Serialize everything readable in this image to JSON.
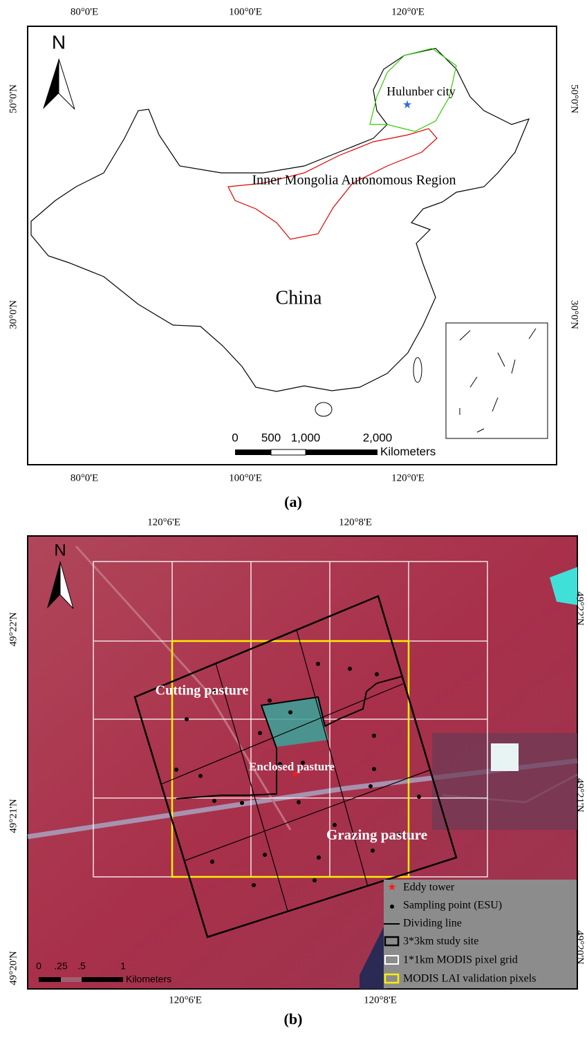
{
  "panel_a": {
    "lon_ticks": [
      "80°0'E",
      "100°0'E",
      "120°0'E"
    ],
    "lat_ticks": [
      "50°0'N",
      "30°0'N"
    ],
    "north": "N",
    "labels": {
      "city": "Hulunber city",
      "region": "Inner Mongolia Autonomous Region",
      "country": "China"
    },
    "scale": {
      "ticks": [
        "0",
        "500",
        "1,000",
        "2,000"
      ],
      "unit": "Kilometers"
    },
    "caption": "(a)"
  },
  "panel_b": {
    "lon_ticks": [
      "120°6'E",
      "120°8'E"
    ],
    "lat_ticks": [
      "49°22'N",
      "49°21'N",
      "49°20'N"
    ],
    "north": "N",
    "labels": {
      "cutting": "Cutting pasture",
      "enclosed": "Enclosed pasture",
      "grazing": "Grazing pasture"
    },
    "scale": {
      "ticks": [
        "0",
        ".25",
        ".5",
        "1"
      ],
      "unit": "Kilometers"
    },
    "legend": [
      "Eddy tower",
      "Sampling point (ESU)",
      "Dividing line",
      "3*3km study site",
      "1*1km MODIS pixel grid",
      "MODIS LAI validation pixels"
    ],
    "caption": "(b)"
  }
}
